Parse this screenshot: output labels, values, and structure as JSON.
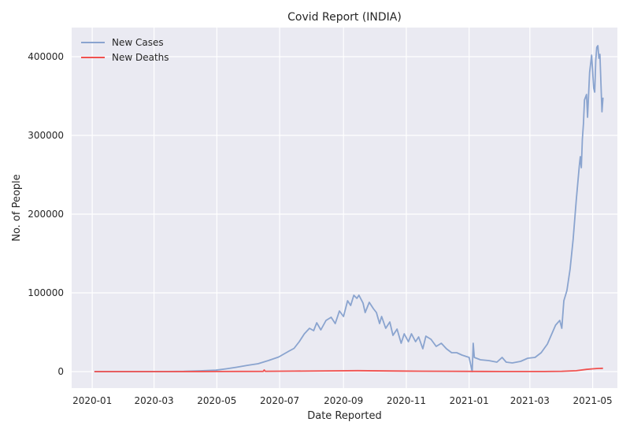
{
  "chart_data": {
    "type": "line",
    "title": "Covid Report (INDIA)",
    "xlabel": "Date Reported",
    "ylabel": "No. of People",
    "xlim": [
      "2019-12-12",
      "2021-05-25"
    ],
    "ylim": [
      -21000,
      437000
    ],
    "x_ticks": [
      "2020-01",
      "2020-03",
      "2020-05",
      "2020-07",
      "2020-09",
      "2020-11",
      "2021-01",
      "2021-03",
      "2021-05"
    ],
    "y_ticks": [
      0,
      100000,
      200000,
      300000,
      400000
    ],
    "grid": true,
    "legend_position": "top-left",
    "series": [
      {
        "name": "New Cases",
        "color": "#8aa4cf",
        "points": [
          [
            "2020-01-03",
            0
          ],
          [
            "2020-02-15",
            0
          ],
          [
            "2020-03-15",
            50
          ],
          [
            "2020-03-30",
            300
          ],
          [
            "2020-04-15",
            1000
          ],
          [
            "2020-04-30",
            1800
          ],
          [
            "2020-05-10",
            3500
          ],
          [
            "2020-05-20",
            5500
          ],
          [
            "2020-05-31",
            8000
          ],
          [
            "2020-06-10",
            10000
          ],
          [
            "2020-06-20",
            14000
          ],
          [
            "2020-06-30",
            18500
          ],
          [
            "2020-07-10",
            26000
          ],
          [
            "2020-07-15",
            29500
          ],
          [
            "2020-07-20",
            38000
          ],
          [
            "2020-07-25",
            48000
          ],
          [
            "2020-07-30",
            55000
          ],
          [
            "2020-08-03",
            52000
          ],
          [
            "2020-08-06",
            62000
          ],
          [
            "2020-08-10",
            53000
          ],
          [
            "2020-08-15",
            65000
          ],
          [
            "2020-08-20",
            69000
          ],
          [
            "2020-08-24",
            61000
          ],
          [
            "2020-08-28",
            77000
          ],
          [
            "2020-09-01",
            70000
          ],
          [
            "2020-09-05",
            90000
          ],
          [
            "2020-09-08",
            84000
          ],
          [
            "2020-09-11",
            97000
          ],
          [
            "2020-09-14",
            93000
          ],
          [
            "2020-09-16",
            97000
          ],
          [
            "2020-09-20",
            87000
          ],
          [
            "2020-09-22",
            75000
          ],
          [
            "2020-09-26",
            88000
          ],
          [
            "2020-09-30",
            80000
          ],
          [
            "2020-10-03",
            75000
          ],
          [
            "2020-10-06",
            61000
          ],
          [
            "2020-10-08",
            70000
          ],
          [
            "2020-10-12",
            55000
          ],
          [
            "2020-10-16",
            63000
          ],
          [
            "2020-10-19",
            46000
          ],
          [
            "2020-10-23",
            54000
          ],
          [
            "2020-10-27",
            36000
          ],
          [
            "2020-10-30",
            48000
          ],
          [
            "2020-11-03",
            38000
          ],
          [
            "2020-11-06",
            48000
          ],
          [
            "2020-11-10",
            38000
          ],
          [
            "2020-11-13",
            44000
          ],
          [
            "2020-11-17",
            29000
          ],
          [
            "2020-11-20",
            45000
          ],
          [
            "2020-11-25",
            41000
          ],
          [
            "2020-11-30",
            32000
          ],
          [
            "2020-12-05",
            36000
          ],
          [
            "2020-12-10",
            29000
          ],
          [
            "2020-12-15",
            24000
          ],
          [
            "2020-12-20",
            24000
          ],
          [
            "2020-12-25",
            21000
          ],
          [
            "2021-01-01",
            18000
          ],
          [
            "2021-01-04",
            0
          ],
          [
            "2021-01-05",
            36000
          ],
          [
            "2021-01-06",
            18000
          ],
          [
            "2021-01-12",
            15000
          ],
          [
            "2021-01-20",
            14000
          ],
          [
            "2021-01-28",
            12000
          ],
          [
            "2021-02-02",
            18000
          ],
          [
            "2021-02-06",
            12000
          ],
          [
            "2021-02-12",
            11000
          ],
          [
            "2021-02-20",
            13000
          ],
          [
            "2021-02-27",
            17000
          ],
          [
            "2021-03-06",
            18000
          ],
          [
            "2021-03-12",
            24000
          ],
          [
            "2021-03-18",
            35000
          ],
          [
            "2021-03-22",
            47000
          ],
          [
            "2021-03-26",
            59000
          ],
          [
            "2021-03-30",
            65000
          ],
          [
            "2021-04-01",
            55000
          ],
          [
            "2021-04-03",
            90000
          ],
          [
            "2021-04-06",
            103000
          ],
          [
            "2021-04-09",
            130000
          ],
          [
            "2021-04-12",
            168000
          ],
          [
            "2021-04-15",
            217000
          ],
          [
            "2021-04-18",
            261000
          ],
          [
            "2021-04-19",
            273000
          ],
          [
            "2021-04-20",
            259000
          ],
          [
            "2021-04-21",
            295000
          ],
          [
            "2021-04-22",
            315000
          ],
          [
            "2021-04-23",
            345000
          ],
          [
            "2021-04-25",
            352000
          ],
          [
            "2021-04-26",
            323000
          ],
          [
            "2021-04-28",
            380000
          ],
          [
            "2021-04-30",
            402000
          ],
          [
            "2021-05-02",
            360000
          ],
          [
            "2021-05-03",
            355000
          ],
          [
            "2021-05-04",
            395000
          ],
          [
            "2021-05-05",
            412000
          ],
          [
            "2021-05-06",
            414000
          ],
          [
            "2021-05-07",
            398000
          ],
          [
            "2021-05-08",
            403000
          ],
          [
            "2021-05-09",
            366000
          ],
          [
            "2021-05-10",
            330000
          ],
          [
            "2021-05-11",
            348000
          ]
        ]
      },
      {
        "name": "New Deaths",
        "color": "#f0514f",
        "points": [
          [
            "2020-01-03",
            0
          ],
          [
            "2020-03-15",
            0
          ],
          [
            "2020-05-01",
            70
          ],
          [
            "2020-06-15",
            300
          ],
          [
            "2020-06-16",
            2000
          ],
          [
            "2020-06-17",
            400
          ],
          [
            "2020-07-15",
            600
          ],
          [
            "2020-08-15",
            950
          ],
          [
            "2020-09-15",
            1200
          ],
          [
            "2020-10-15",
            800
          ],
          [
            "2020-11-15",
            500
          ],
          [
            "2020-12-15",
            350
          ],
          [
            "2021-01-15",
            200
          ],
          [
            "2021-02-15",
            110
          ],
          [
            "2021-03-15",
            150
          ],
          [
            "2021-04-01",
            450
          ],
          [
            "2021-04-15",
            1100
          ],
          [
            "2021-04-25",
            2800
          ],
          [
            "2021-05-01",
            3500
          ],
          [
            "2021-05-06",
            4000
          ],
          [
            "2021-05-11",
            4200
          ]
        ]
      }
    ]
  }
}
